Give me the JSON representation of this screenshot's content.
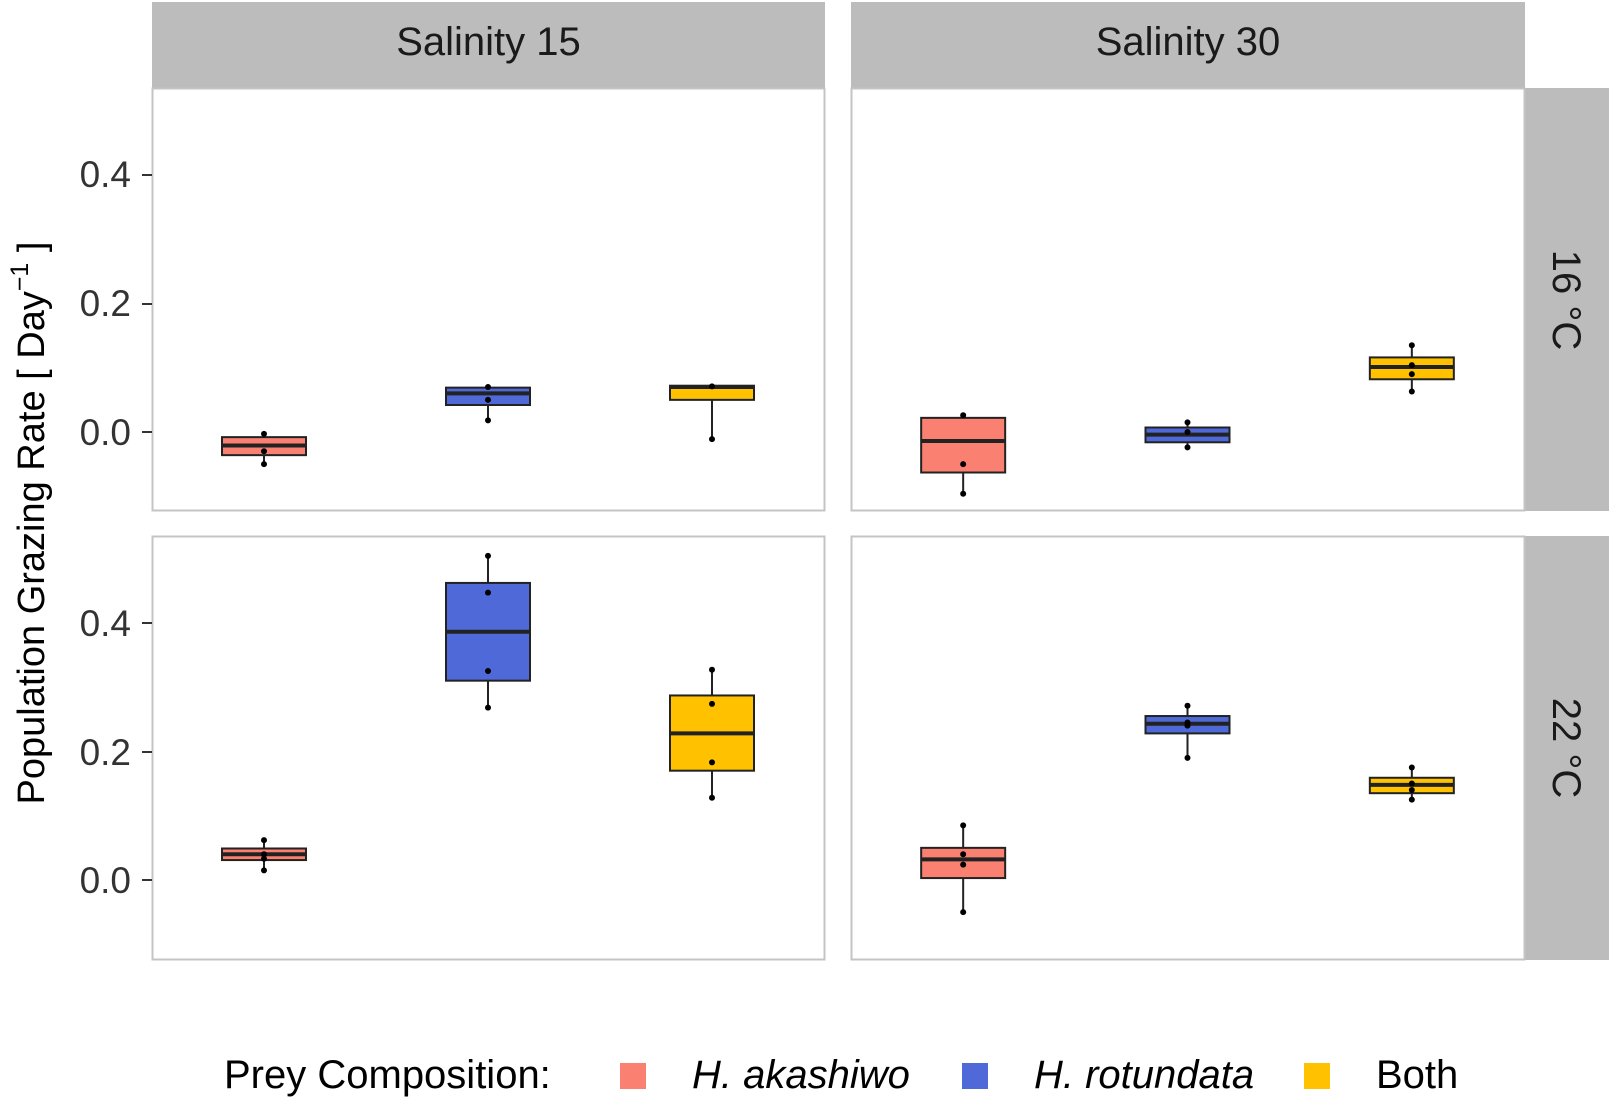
{
  "chart_data": {
    "type": "boxplot",
    "ylabel": "Population Grazing Rate [ Day",
    "ylabel_sup": "−1",
    "ylabel_end": " ]",
    "col_facets": [
      "Salinity 15",
      "Salinity 30"
    ],
    "row_facets": [
      "16 °C",
      "22 °C"
    ],
    "ylim": [
      -0.125,
      0.53
    ],
    "yticks": [
      0.0,
      0.2,
      0.4
    ],
    "ytick_labels": [
      "0.0",
      "0.2",
      "0.4"
    ],
    "categories": [
      "H. akashiwo",
      "H. rotundata",
      "Both"
    ],
    "colors": {
      "H. akashiwo": "#fa8072",
      "H. rotundata": "#4f6ad8",
      "Both": "#ffc100"
    },
    "legend": {
      "title": "Prey Composition:",
      "items": [
        "H. akashiwo",
        "H. rotundata",
        "Both"
      ],
      "position": "bottom"
    },
    "panels": [
      {
        "row": 0,
        "col": 0,
        "boxes": [
          {
            "category": "H. akashiwo",
            "min": -0.05,
            "q1": -0.036,
            "median": -0.021,
            "q3": -0.008,
            "max": -0.003,
            "points": [
              -0.003,
              -0.03,
              -0.05
            ]
          },
          {
            "category": "H. rotundata",
            "min": 0.018,
            "q1": 0.042,
            "median": 0.06,
            "q3": 0.069,
            "max": 0.072,
            "points": [
              0.07,
              0.05,
              0.018
            ]
          },
          {
            "category": "Both",
            "min": -0.012,
            "q1": 0.05,
            "median": 0.07,
            "q3": 0.072,
            "max": 0.072,
            "points": [
              0.071,
              -0.011
            ]
          }
        ]
      },
      {
        "row": 0,
        "col": 1,
        "boxes": [
          {
            "category": "H. akashiwo",
            "min": -0.098,
            "q1": -0.063,
            "median": -0.014,
            "q3": 0.022,
            "max": 0.027,
            "points": [
              0.026,
              -0.05,
              -0.096
            ]
          },
          {
            "category": "H. rotundata",
            "min": -0.025,
            "q1": -0.016,
            "median": -0.004,
            "q3": 0.007,
            "max": 0.015,
            "points": [
              0.015,
              0.0,
              -0.024
            ]
          },
          {
            "category": "Both",
            "min": 0.062,
            "q1": 0.082,
            "median": 0.101,
            "q3": 0.116,
            "max": 0.136,
            "points": [
              0.135,
              0.104,
              0.09,
              0.063
            ]
          }
        ]
      },
      {
        "row": 1,
        "col": 0,
        "boxes": [
          {
            "category": "H. akashiwo",
            "min": 0.015,
            "q1": 0.031,
            "median": 0.04,
            "q3": 0.049,
            "max": 0.063,
            "points": [
              0.062,
              0.04,
              0.033,
              0.015
            ]
          },
          {
            "category": "H. rotundata",
            "min": 0.267,
            "q1": 0.31,
            "median": 0.386,
            "q3": 0.462,
            "max": 0.505,
            "points": [
              0.504,
              0.447,
              0.325,
              0.268
            ]
          },
          {
            "category": "Both",
            "min": 0.127,
            "q1": 0.17,
            "median": 0.228,
            "q3": 0.287,
            "max": 0.328,
            "points": [
              0.327,
              0.274,
              0.183,
              0.128
            ]
          }
        ]
      },
      {
        "row": 1,
        "col": 1,
        "boxes": [
          {
            "category": "H. akashiwo",
            "min": -0.05,
            "q1": 0.003,
            "median": 0.032,
            "q3": 0.05,
            "max": 0.085,
            "points": [
              0.085,
              0.04,
              0.024,
              -0.05
            ]
          },
          {
            "category": "H. rotundata",
            "min": 0.19,
            "q1": 0.228,
            "median": 0.243,
            "q3": 0.255,
            "max": 0.272,
            "points": [
              0.271,
              0.245,
              0.24,
              0.19
            ]
          },
          {
            "category": "Both",
            "min": 0.124,
            "q1": 0.135,
            "median": 0.148,
            "q3": 0.159,
            "max": 0.176,
            "points": [
              0.175,
              0.15,
              0.14,
              0.125
            ]
          }
        ]
      }
    ]
  }
}
